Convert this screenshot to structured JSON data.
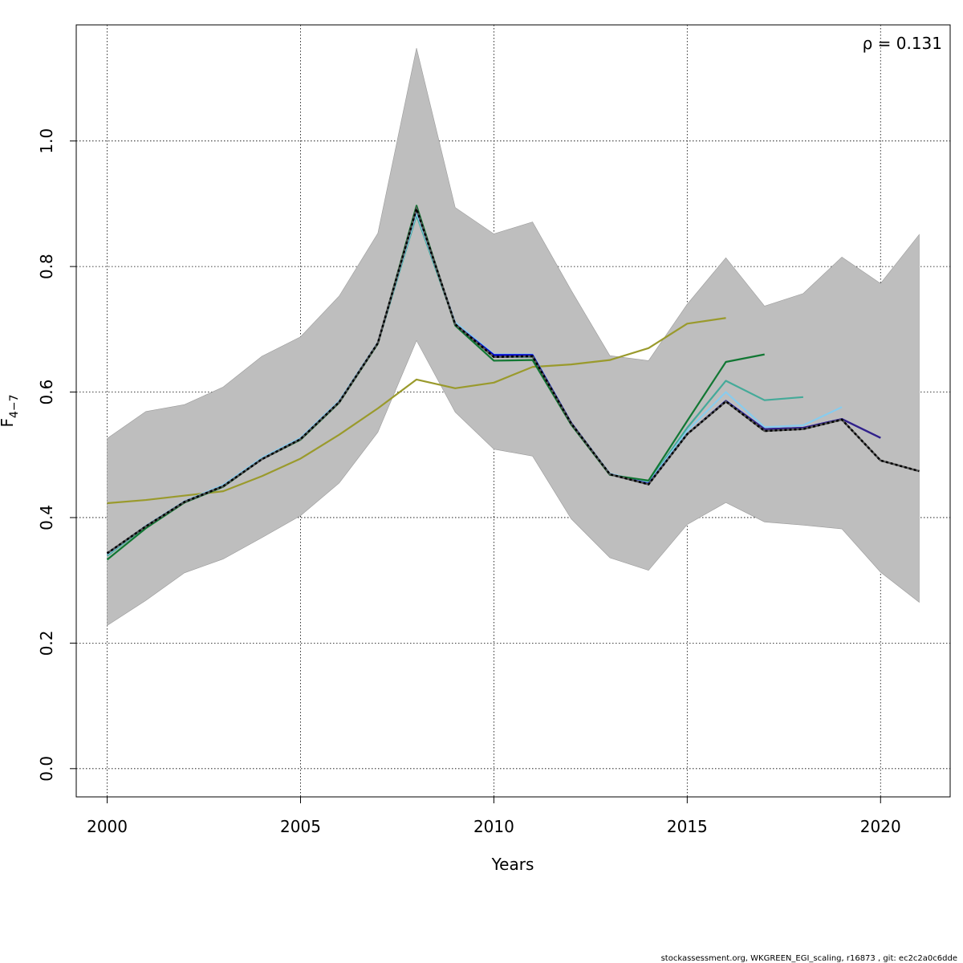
{
  "chart_data": {
    "type": "line",
    "xlabel": "Years",
    "ylabel_main": "F",
    "ylabel_sub": "4−7",
    "annotation": "ρ = 0.131",
    "footer": "stockassessment.org, WKGREEN_EGI_scaling, r16873 , git: ec2c2a0c6dde",
    "xlim": [
      1999.2,
      2021.8
    ],
    "ylim": [
      -0.045,
      1.185
    ],
    "x_ticks": [
      2000,
      2005,
      2010,
      2015,
      2020
    ],
    "x_tick_labels": [
      "2000",
      "2005",
      "2010",
      "2015",
      "2020"
    ],
    "y_ticks": [
      0.0,
      0.2,
      0.4,
      0.6,
      0.8,
      1.0
    ],
    "y_tick_labels": [
      "0.0",
      "0.2",
      "0.4",
      "0.6",
      "0.8",
      "1.0"
    ],
    "grid": true,
    "band": {
      "color": "#bebebe",
      "x": [
        2000,
        2001,
        2002,
        2003,
        2004,
        2005,
        2006,
        2007,
        2008,
        2009,
        2010,
        2011,
        2012,
        2013,
        2014,
        2015,
        2016,
        2017,
        2018,
        2019,
        2020,
        2021
      ],
      "lower": [
        0.228,
        0.268,
        0.312,
        0.334,
        0.368,
        0.403,
        0.455,
        0.536,
        0.682,
        0.568,
        0.509,
        0.498,
        0.398,
        0.336,
        0.316,
        0.389,
        0.424,
        0.393,
        0.388,
        0.382,
        0.313,
        0.265
      ],
      "upper": [
        0.526,
        0.569,
        0.58,
        0.608,
        0.657,
        0.688,
        0.753,
        0.853,
        1.148,
        0.894,
        0.852,
        0.871,
        0.762,
        0.658,
        0.65,
        0.74,
        0.814,
        0.737,
        0.757,
        0.815,
        0.773,
        0.851
      ]
    },
    "series": [
      {
        "color": "#9a9a2c",
        "dashed": false,
        "x": [
          2000,
          2001,
          2002,
          2003,
          2004,
          2005,
          2006,
          2007,
          2008,
          2009,
          2010,
          2011,
          2012,
          2013,
          2014,
          2015,
          2016
        ],
        "values": [
          0.423,
          0.428,
          0.435,
          0.442,
          0.466,
          0.494,
          0.532,
          0.574,
          0.62,
          0.606,
          0.615,
          0.64,
          0.644,
          0.651,
          0.67,
          0.709,
          0.718
        ]
      },
      {
        "color": "#44aa99",
        "dashed": false,
        "x": [
          2000,
          2001,
          2002,
          2003,
          2004,
          2005,
          2006,
          2007,
          2008,
          2009,
          2010,
          2011,
          2012,
          2013,
          2014,
          2015,
          2016,
          2017,
          2018
        ],
        "values": [
          0.339,
          0.386,
          0.425,
          0.451,
          0.494,
          0.526,
          0.585,
          0.678,
          0.882,
          0.709,
          0.656,
          0.656,
          0.55,
          0.469,
          0.456,
          0.543,
          0.618,
          0.587,
          0.592
        ]
      },
      {
        "color": "#88ccee",
        "dashed": false,
        "x": [
          2000,
          2001,
          2002,
          2003,
          2004,
          2005,
          2006,
          2007,
          2008,
          2009,
          2010,
          2011,
          2012,
          2013,
          2014,
          2015,
          2016,
          2017,
          2018,
          2019
        ],
        "values": [
          0.341,
          0.387,
          0.426,
          0.452,
          0.495,
          0.527,
          0.586,
          0.679,
          0.886,
          0.711,
          0.66,
          0.66,
          0.551,
          0.47,
          0.455,
          0.538,
          0.6,
          0.544,
          0.547,
          0.576
        ]
      },
      {
        "color": "#0000cd",
        "dashed": false,
        "x": [
          2000,
          2001,
          2002,
          2003,
          2004,
          2005,
          2006,
          2007,
          2008,
          2009,
          2010,
          2011,
          2012,
          2013,
          2014,
          2015,
          2016,
          2017,
          2018,
          2019,
          2020
        ],
        "values": [
          0.343,
          0.386,
          0.425,
          0.45,
          0.493,
          0.525,
          0.584,
          0.678,
          0.892,
          0.708,
          0.659,
          0.659,
          0.551,
          0.469,
          0.454,
          0.533,
          0.586,
          0.541,
          0.543,
          0.557,
          0.527
        ]
      },
      {
        "color": "#332288",
        "dashed": false,
        "x": [
          2000,
          2001,
          2002,
          2003,
          2004,
          2005,
          2006,
          2007,
          2008,
          2009,
          2010,
          2011,
          2012,
          2013,
          2014,
          2015,
          2016,
          2017,
          2018,
          2019,
          2020
        ],
        "values": [
          0.343,
          0.386,
          0.425,
          0.45,
          0.493,
          0.525,
          0.584,
          0.678,
          0.892,
          0.708,
          0.656,
          0.657,
          0.55,
          0.469,
          0.453,
          0.533,
          0.585,
          0.541,
          0.543,
          0.557,
          0.527
        ]
      },
      {
        "color": "#117733",
        "dashed": false,
        "x": [
          2000,
          2001,
          2002,
          2003,
          2004,
          2005,
          2006,
          2007,
          2008,
          2009,
          2010,
          2011,
          2012,
          2013,
          2014,
          2015,
          2016,
          2017
        ],
        "values": [
          0.333,
          0.383,
          0.424,
          0.449,
          0.493,
          0.524,
          0.583,
          0.677,
          0.897,
          0.706,
          0.65,
          0.651,
          0.548,
          0.468,
          0.459,
          0.554,
          0.648,
          0.66
        ]
      },
      {
        "color": "#000000",
        "dashed": true,
        "x": [
          2000,
          2001,
          2002,
          2003,
          2004,
          2005,
          2006,
          2007,
          2008,
          2009,
          2010,
          2011,
          2012,
          2013,
          2014,
          2015,
          2016,
          2017,
          2018,
          2019,
          2020,
          2021
        ],
        "values": [
          0.343,
          0.386,
          0.425,
          0.45,
          0.493,
          0.525,
          0.584,
          0.678,
          0.892,
          0.708,
          0.656,
          0.657,
          0.55,
          0.469,
          0.453,
          0.533,
          0.585,
          0.538,
          0.541,
          0.556,
          0.491,
          0.474
        ]
      }
    ]
  }
}
